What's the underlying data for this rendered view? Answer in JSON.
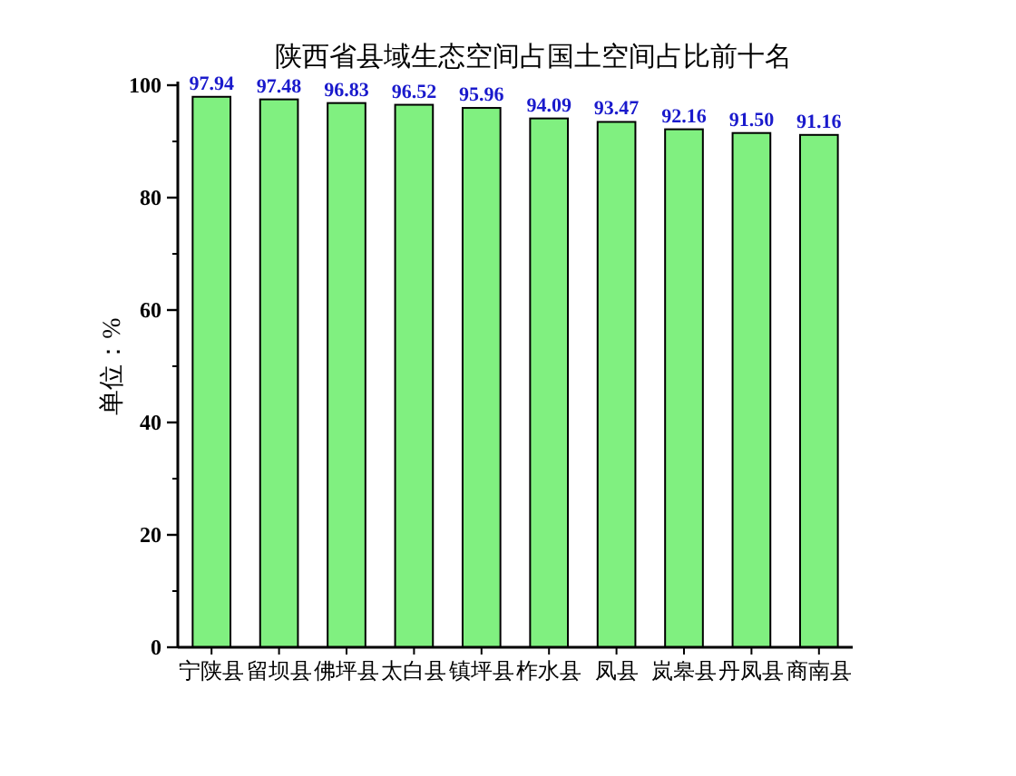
{
  "chart_data": {
    "type": "bar",
    "title": "陕西省县域生态空间占国土空间占比前十名",
    "ylabel": "单位：%",
    "categories": [
      "宁陕县",
      "留坝县",
      "佛坪县",
      "太白县",
      "镇坪县",
      "柞水县",
      "凤县",
      "岚皋县",
      "丹凤县",
      "商南县"
    ],
    "values": [
      97.94,
      97.48,
      96.83,
      96.52,
      95.96,
      94.09,
      93.47,
      92.16,
      91.5,
      91.16
    ],
    "value_labels": [
      "97.94",
      "97.48",
      "96.83",
      "96.52",
      "95.96",
      "94.09",
      "93.47",
      "92.16",
      "91.50",
      "91.16"
    ],
    "color": "#80f080",
    "ylim": [
      0,
      100
    ],
    "yticks": [
      0,
      20,
      40,
      60,
      80,
      100
    ]
  }
}
